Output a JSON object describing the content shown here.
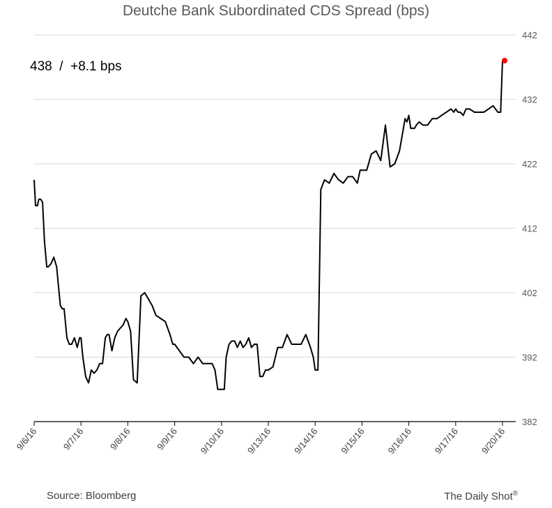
{
  "chart_data": {
    "type": "line",
    "title": "Deutche Bank Subordinated CDS Spread (bps)",
    "annotation": "438  /  +8.1 bps",
    "last_value": 438,
    "last_change": 8.1,
    "ylim": [
      382,
      442
    ],
    "y_ticks": [
      382,
      392,
      402,
      412,
      422,
      432,
      442
    ],
    "x_ticks": [
      "9/6/16",
      "9/7/16",
      "9/8/16",
      "9/9/16",
      "9/10/16",
      "9/13/16",
      "9/14/16",
      "9/15/16",
      "9/16/16",
      "9/17/16",
      "9/20/16"
    ],
    "grid": true,
    "y_axis_side": "right",
    "series": [
      {
        "color": "#000000",
        "marker_color": "#ff0000",
        "x": [
          0,
          0.03,
          0.07,
          0.1,
          0.14,
          0.18,
          0.22,
          0.27,
          0.3,
          0.36,
          0.42,
          0.48,
          0.52,
          0.56,
          0.6,
          0.64,
          0.7,
          0.75,
          0.8,
          0.86,
          0.92,
          0.97,
          1.0,
          1.04,
          1.1,
          1.16,
          1.22,
          1.28,
          1.34,
          1.4,
          1.46,
          1.52,
          1.56,
          1.6,
          1.66,
          1.72,
          1.78,
          1.84,
          1.9,
          1.96,
          2.0,
          2.06,
          2.12,
          2.2,
          2.28,
          2.36,
          2.44,
          2.52,
          2.6,
          2.7,
          2.8,
          2.9,
          2.96,
          3.0,
          3.1,
          3.2,
          3.3,
          3.4,
          3.5,
          3.6,
          3.7,
          3.8,
          3.86,
          3.9,
          3.92,
          3.96,
          4.0,
          4.06,
          4.1,
          4.16,
          4.22,
          4.28,
          4.34,
          4.4,
          4.46,
          4.52,
          4.58,
          4.64,
          4.7,
          4.76,
          4.82,
          4.88,
          4.94,
          5.0,
          5.1,
          5.2,
          5.3,
          5.4,
          5.5,
          5.6,
          5.7,
          5.8,
          5.9,
          5.96,
          6.0,
          6.06,
          6.12,
          6.2,
          6.3,
          6.4,
          6.5,
          6.6,
          6.7,
          6.8,
          6.9,
          6.96,
          7.0,
          7.1,
          7.2,
          7.3,
          7.4,
          7.5,
          7.6,
          7.7,
          7.8,
          7.86,
          7.92,
          7.96,
          8.0,
          8.04,
          8.08,
          8.12,
          8.16,
          8.22,
          8.3,
          8.4,
          8.5,
          8.6,
          8.7,
          8.8,
          8.9,
          8.96,
          9.0,
          9.05,
          9.1,
          9.16,
          9.22,
          9.3,
          9.4,
          9.5,
          9.6,
          9.7,
          9.8,
          9.9,
          9.96,
          10.0
        ],
        "values": [
          419.5,
          415.5,
          415.5,
          416.5,
          416.5,
          416,
          410,
          406,
          406,
          406.5,
          407.5,
          406,
          403,
          400,
          399.5,
          399.5,
          395,
          394,
          394,
          395,
          393.5,
          395,
          395,
          392,
          389,
          388,
          390,
          389.5,
          390,
          391,
          391,
          395,
          395.5,
          395.5,
          393,
          395,
          396,
          396.5,
          397,
          398,
          397.5,
          396,
          388.5,
          388,
          401.5,
          402,
          401,
          400,
          398.5,
          398,
          397.5,
          395.5,
          394,
          394,
          393,
          392,
          392,
          391,
          392,
          391,
          391,
          391,
          390,
          388,
          387,
          387,
          387,
          387,
          392,
          394,
          394.5,
          394.5,
          393.5,
          394.5,
          393.5,
          394,
          395,
          393.5,
          394,
          394,
          389,
          389,
          390,
          390,
          390.5,
          393.5,
          393.5,
          395.5,
          394,
          394,
          394,
          395.5,
          393.5,
          392,
          390,
          390,
          418,
          419.5,
          419,
          420.5,
          419.5,
          419,
          420,
          420,
          419,
          421,
          421,
          421,
          423.5,
          424,
          422.5,
          428,
          421.5,
          422,
          424,
          426.5,
          429,
          428.5,
          429.5,
          427.5,
          427.5,
          427.5,
          428,
          428.5,
          428,
          428,
          429,
          429,
          429.5,
          430,
          430.5,
          430,
          430.5,
          430,
          430,
          429.5,
          430.5,
          430.5,
          430,
          430,
          430,
          430.5,
          431,
          430,
          430,
          438
        ]
      }
    ]
  },
  "source": "Source: Bloomberg",
  "credit": "The Daily Shot",
  "credit_mark": "®"
}
